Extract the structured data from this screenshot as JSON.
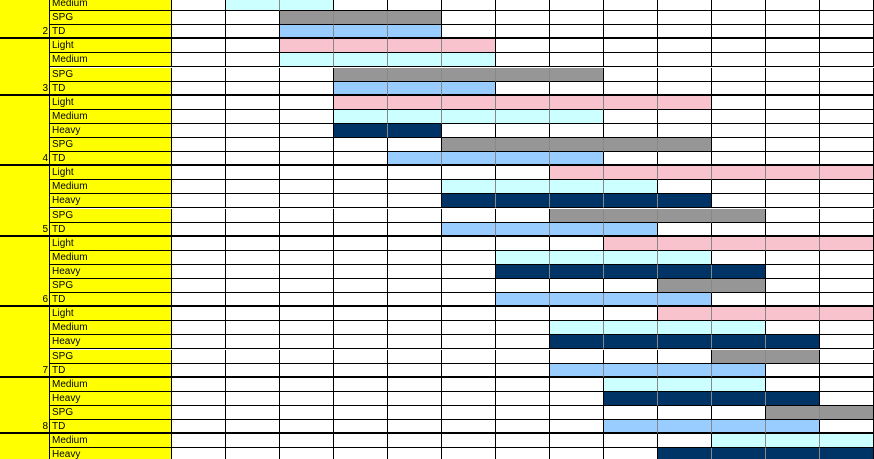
{
  "groups": [
    {
      "tier": 2,
      "rows": [
        "Medium",
        "SPG",
        "TD"
      ]
    },
    {
      "tier": 3,
      "rows": [
        "Light",
        "Medium",
        "SPG",
        "TD"
      ]
    },
    {
      "tier": 4,
      "rows": [
        "Light",
        "Medium",
        "Heavy",
        "SPG",
        "TD"
      ]
    },
    {
      "tier": 5,
      "rows": [
        "Light",
        "Medium",
        "Heavy",
        "SPG",
        "TD"
      ]
    },
    {
      "tier": 6,
      "rows": [
        "Light",
        "Medium",
        "Heavy",
        "SPG",
        "TD"
      ]
    },
    {
      "tier": 7,
      "rows": [
        "Light",
        "Medium",
        "Heavy",
        "SPG",
        "TD"
      ]
    },
    {
      "tier": 8,
      "rows": [
        "Medium",
        "Heavy",
        "SPG",
        "TD"
      ]
    },
    {
      "rows": [
        "Medium",
        "Heavy"
      ]
    }
  ]
}
